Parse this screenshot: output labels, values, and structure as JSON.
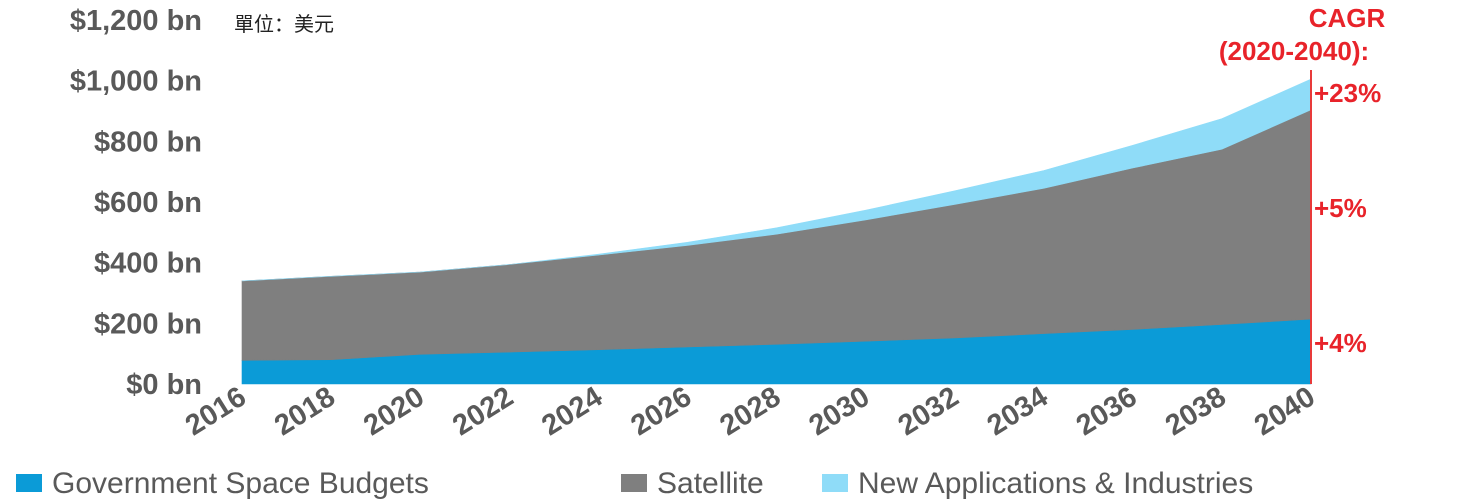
{
  "chart_data": {
    "type": "area",
    "stacked": true,
    "unit_label": "單位：美元",
    "x": [
      2016,
      2018,
      2020,
      2022,
      2024,
      2026,
      2028,
      2030,
      2032,
      2034,
      2036,
      2038,
      2040
    ],
    "x_tick_labels": [
      "2016",
      "2018",
      "2020",
      "2022",
      "2024",
      "2026",
      "2028",
      "2030",
      "2032",
      "2034",
      "2036",
      "2038",
      "2040"
    ],
    "ylim": [
      0,
      1200
    ],
    "y_ticks": [
      0,
      200,
      400,
      600,
      800,
      1000,
      1200
    ],
    "y_tick_labels": [
      "$0 bn",
      "$200 bn",
      "$400 bn",
      "$600 bn",
      "$800 bn",
      "$1,000 bn",
      "$1,200 bn"
    ],
    "series": [
      {
        "name": "Government Space Budgets",
        "color": "#0b9bd7",
        "values": [
          78,
          80,
          98,
          105,
          113,
          122,
          131,
          141,
          152,
          166,
          180,
          196,
          214
        ]
      },
      {
        "name": "Satellite",
        "color": "#7f7f7f",
        "values": [
          262,
          275,
          271,
          289,
          312,
          335,
          363,
          400,
          440,
          479,
          532,
          578,
          690
        ]
      },
      {
        "name": "New Applications & Industries",
        "color": "#8fdcf8",
        "values": [
          0,
          0,
          0,
          0,
          3,
          10,
          21,
          32,
          45,
          59,
          75,
          101,
          101
        ]
      }
    ],
    "annotations": {
      "cagr_title_line1": "CAGR",
      "cagr_title_line2": "(2020-2040):",
      "cagr_values": [
        "+23%",
        "+5%",
        "+4%"
      ]
    },
    "legend_position": "bottom",
    "grid": false
  }
}
